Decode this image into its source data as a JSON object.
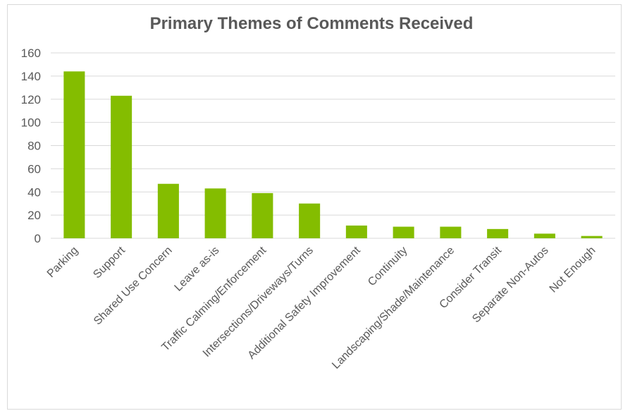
{
  "chart_data": {
    "type": "bar",
    "title": "Primary Themes of Comments Received",
    "xlabel": "",
    "ylabel": "",
    "categories": [
      "Parking",
      "Support",
      "Shared Use Concern",
      "Leave as-is",
      "Traffic Calming/Enforcement",
      "Intersections/Driveways/Turns",
      "Additional Safety Improvement",
      "Continuity",
      "Landscaping/Shade/Maintenance",
      "Consider Transit",
      "Separate Non-Autos",
      "Not Enough"
    ],
    "values": [
      144,
      123,
      47,
      43,
      39,
      30,
      11,
      10,
      10,
      8,
      4,
      2
    ],
    "ylim": [
      0,
      160
    ],
    "yticks": [
      0,
      20,
      40,
      60,
      80,
      100,
      120,
      140,
      160
    ],
    "grid": true,
    "legend": "none",
    "colors": {
      "bar": "#84bd00",
      "grid": "#d9d9d9",
      "text": "#595959"
    }
  }
}
